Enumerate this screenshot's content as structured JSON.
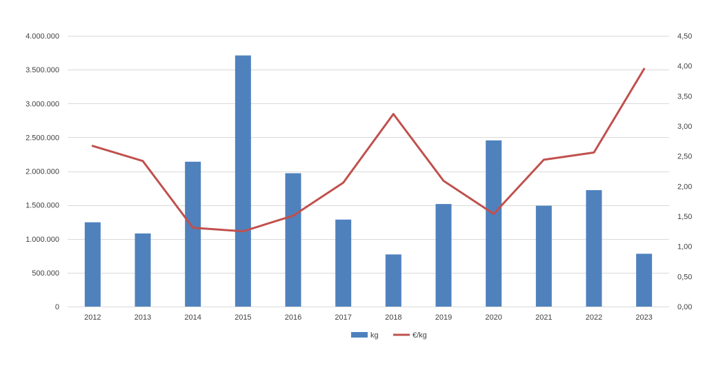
{
  "chart_data": {
    "type": "bar",
    "categories": [
      "2012",
      "2013",
      "2014",
      "2015",
      "2016",
      "2017",
      "2018",
      "2019",
      "2020",
      "2021",
      "2022",
      "2023"
    ],
    "series": [
      {
        "name": "kg",
        "type": "bar",
        "axis": "left",
        "color": "#4f81bd",
        "values": [
          1245000,
          1080000,
          2140000,
          3710000,
          1970000,
          1285000,
          770000,
          1515000,
          2455000,
          1490000,
          1720000,
          780000
        ]
      },
      {
        "name": "€/kg",
        "type": "line",
        "axis": "right",
        "color": "#c0504d",
        "values": [
          2.67,
          2.42,
          1.31,
          1.25,
          1.51,
          2.06,
          3.2,
          2.09,
          1.54,
          2.44,
          2.56,
          3.95
        ]
      }
    ],
    "y_left": {
      "min": 0,
      "max": 4000000,
      "ticks": [
        0,
        500000,
        1000000,
        1500000,
        2000000,
        2500000,
        3000000,
        3500000,
        4000000
      ],
      "tick_labels": [
        "0",
        "500.000",
        "1.000.000",
        "1.500.000",
        "2.000.000",
        "2.500.000",
        "3.000.000",
        "3.500.000",
        "4.000.000"
      ]
    },
    "y_right": {
      "min": 0,
      "max": 4.5,
      "ticks": [
        0,
        0.5,
        1,
        1.5,
        2,
        2.5,
        3,
        3.5,
        4,
        4.5
      ],
      "tick_labels": [
        "0,00",
        "0,50",
        "1,00",
        "1,50",
        "2,00",
        "2,50",
        "3,00",
        "3,50",
        "4,00",
        "4,50"
      ]
    },
    "grid": true,
    "legend_position": "bottom-center"
  }
}
